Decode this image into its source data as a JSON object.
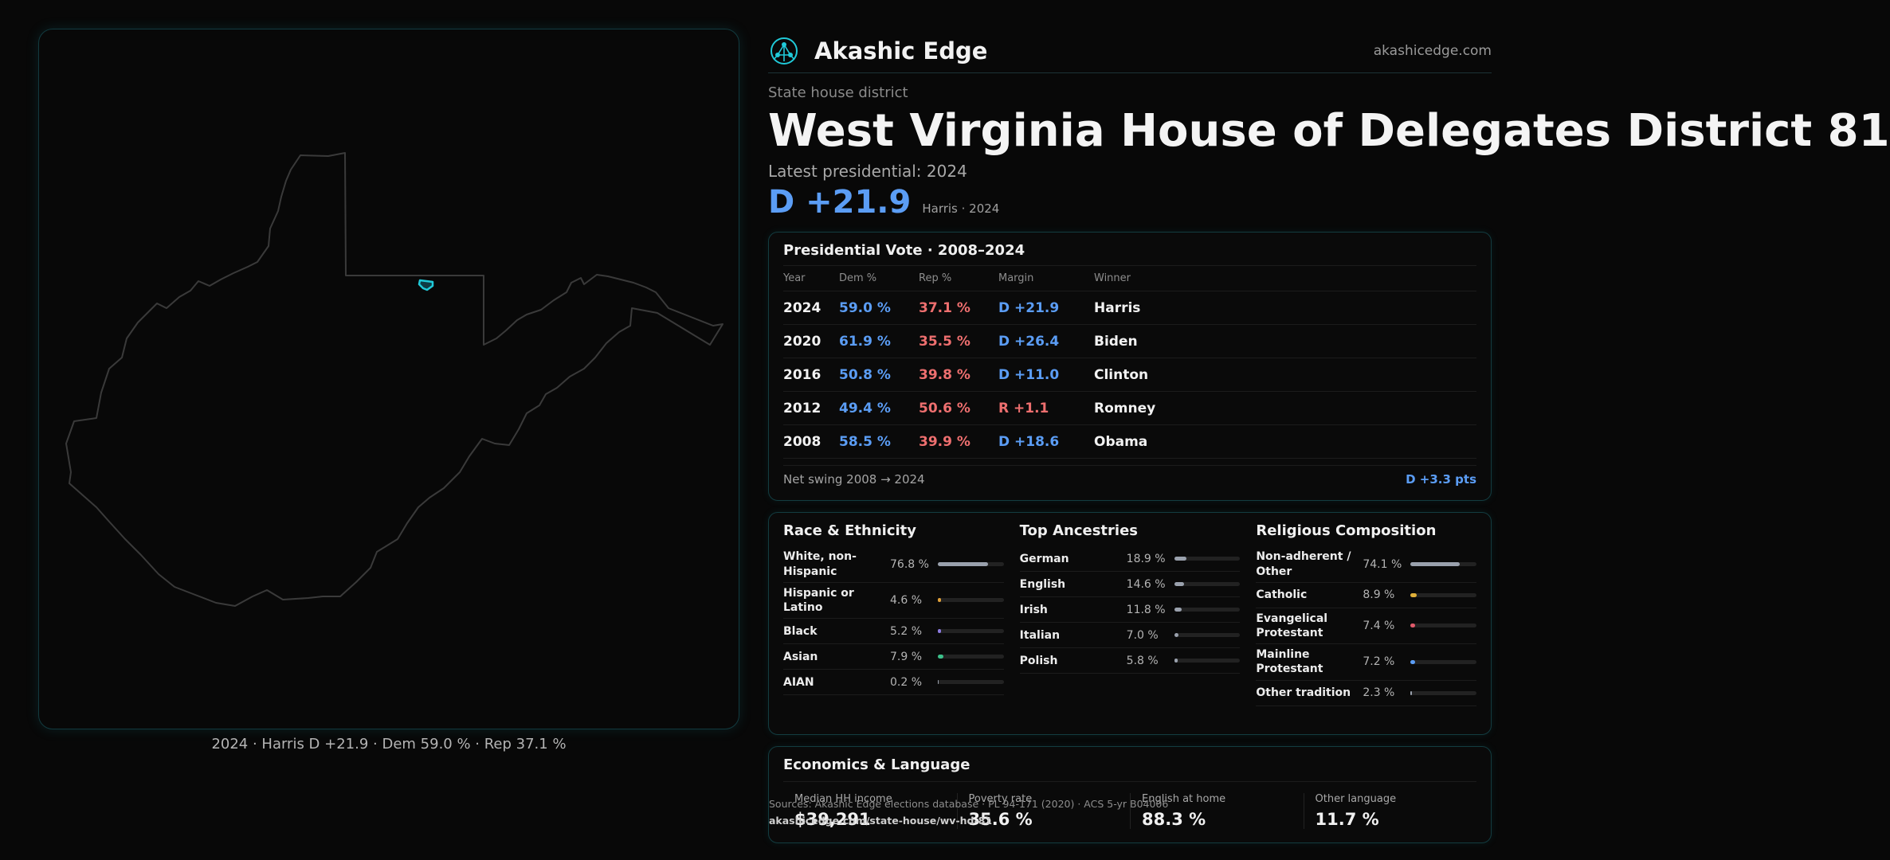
{
  "map": {
    "caption": "2024 · Harris D +21.9 · Dem 59.0 % · Rep 37.1 %",
    "state_outline_color": "#3a3a3a",
    "district_color": "#20c9d8"
  },
  "brand": {
    "name": "Akashic Edge",
    "url": "akashicedge.com",
    "logo_icon": "network-node-icon"
  },
  "header": {
    "eyebrow": "State house district",
    "title": "West Virginia House of Delegates District 81",
    "latest": "Latest presidential: 2024",
    "margin": "D +21.9",
    "margin_sub": "Harris · 2024"
  },
  "presidential": {
    "title": "Presidential Vote · 2008–2024",
    "columns": [
      "Year",
      "Dem %",
      "Rep %",
      "Margin",
      "Winner"
    ],
    "rows": [
      {
        "year": "2024",
        "dem": "59.0 %",
        "rep": "37.1 %",
        "margin": "D +21.9",
        "winner": "Harris",
        "party": "D"
      },
      {
        "year": "2020",
        "dem": "61.9 %",
        "rep": "35.5 %",
        "margin": "D +26.4",
        "winner": "Biden",
        "party": "D"
      },
      {
        "year": "2016",
        "dem": "50.8 %",
        "rep": "39.8 %",
        "margin": "D +11.0",
        "winner": "Clinton",
        "party": "D"
      },
      {
        "year": "2012",
        "dem": "49.4 %",
        "rep": "50.6 %",
        "margin": "R +1.1",
        "winner": "Romney",
        "party": "R"
      },
      {
        "year": "2008",
        "dem": "58.5 %",
        "rep": "39.9 %",
        "margin": "D +18.6",
        "winner": "Obama",
        "party": "D"
      }
    ],
    "swing_label": "Net swing 2008 → 2024",
    "swing_value": "D +3.3 pts"
  },
  "race": {
    "title": "Race & Ethnicity",
    "items": [
      {
        "label": "White, non-Hispanic",
        "value": "76.8 %",
        "pct": 76.8,
        "color": "#9aa1ad"
      },
      {
        "label": "Hispanic or Latino",
        "value": "4.6 %",
        "pct": 4.6,
        "color": "#e0a03a"
      },
      {
        "label": "Black",
        "value": "5.2 %",
        "pct": 5.2,
        "color": "#8c7be0"
      },
      {
        "label": "Asian",
        "value": "7.9 %",
        "pct": 7.9,
        "color": "#3cc08a"
      },
      {
        "label": "AIAN",
        "value": "0.2 %",
        "pct": 0.2,
        "color": "#9aa1ad"
      }
    ]
  },
  "ancestry": {
    "title": "Top Ancestries",
    "items": [
      {
        "label": "German",
        "value": "18.9 %",
        "pct": 18.9,
        "color": "#9aa1ad"
      },
      {
        "label": "English",
        "value": "14.6 %",
        "pct": 14.6,
        "color": "#9aa1ad"
      },
      {
        "label": "Irish",
        "value": "11.8 %",
        "pct": 11.8,
        "color": "#9aa1ad"
      },
      {
        "label": "Italian",
        "value": "7.0 %",
        "pct": 7.0,
        "color": "#9aa1ad"
      },
      {
        "label": "Polish",
        "value": "5.8 %",
        "pct": 5.8,
        "color": "#9aa1ad"
      }
    ]
  },
  "religion": {
    "title": "Religious Composition",
    "items": [
      {
        "label": "Non-adherent / Other",
        "value": "74.1 %",
        "pct": 74.1,
        "color": "#9aa1ad"
      },
      {
        "label": "Catholic",
        "value": "8.9 %",
        "pct": 8.9,
        "color": "#e0b03a"
      },
      {
        "label": "Evangelical Protestant",
        "value": "7.4 %",
        "pct": 7.4,
        "color": "#e05a6a"
      },
      {
        "label": "Mainline Protestant",
        "value": "7.2 %",
        "pct": 7.2,
        "color": "#5b9df5"
      },
      {
        "label": "Other tradition",
        "value": "2.3 %",
        "pct": 2.3,
        "color": "#9aa1ad"
      }
    ]
  },
  "economics": {
    "title": "Economics & Language",
    "items": [
      {
        "label": "Median HH income",
        "value": "$39,291"
      },
      {
        "label": "Poverty rate",
        "value": "35.6 %"
      },
      {
        "label": "English at home",
        "value": "88.3 %"
      },
      {
        "label": "Other language",
        "value": "11.7 %"
      }
    ]
  },
  "source": {
    "text": "Sources: Akashic Edge elections database · PL 94-171 (2020) · ACS 5-yr B04006",
    "url": "akashicedge.com/state-house/wv-hd-81"
  },
  "colors": {
    "dem": "#5b9df5",
    "rep": "#ee6f6f",
    "accent": "#20c9d8"
  }
}
